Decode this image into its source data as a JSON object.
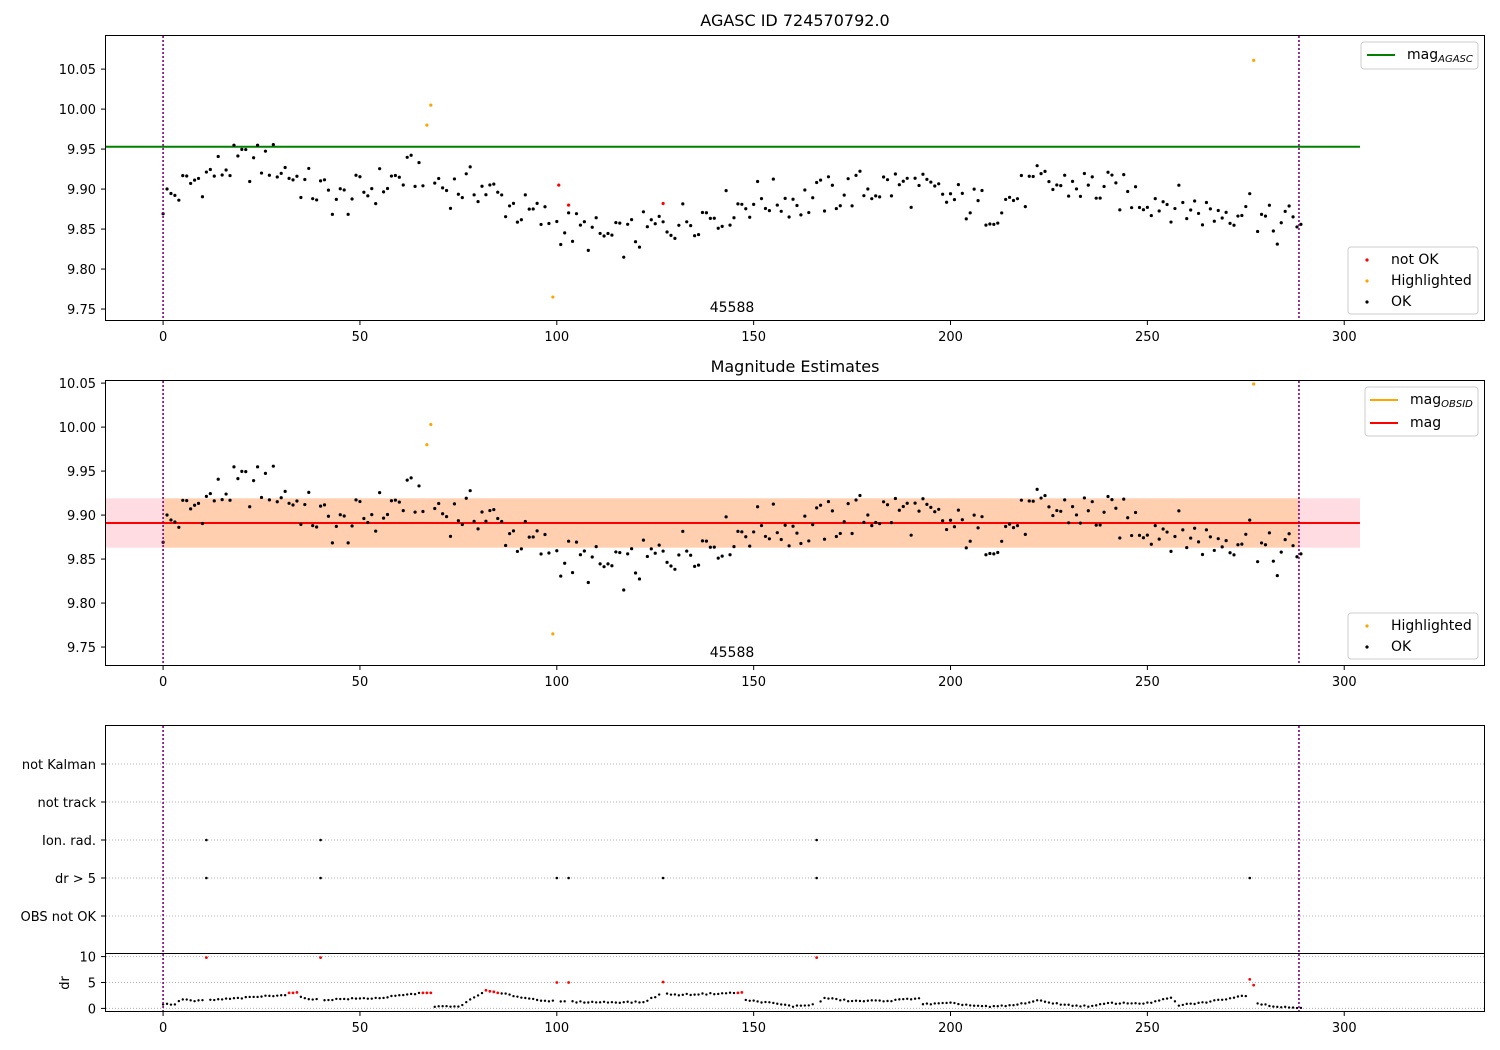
{
  "chart_data": [
    {
      "type": "scatter",
      "title": "AGASC ID 724570792.0",
      "xlabel": "",
      "ylabel": "",
      "xlim": [
        -14.5,
        335.5
      ],
      "ylim": [
        9.7363,
        10.0914
      ],
      "xticks": [
        0,
        50,
        100,
        150,
        200,
        250,
        300
      ],
      "yticks": [
        9.75,
        9.8,
        9.85,
        9.9,
        9.95,
        10.0,
        10.05
      ],
      "ytick_labels": [
        "9.75",
        "9.80",
        "9.85",
        "9.90",
        "9.95",
        "10.00",
        "10.05"
      ],
      "obsid_label": "45588",
      "obsid_label_x": 144.5,
      "vlines": [
        0,
        288.5
      ],
      "hline": {
        "name": "mag$_{AGASC}$",
        "value": 9.953,
        "x_range": [
          0,
          304
        ],
        "color": "#008000"
      },
      "legend_upper": [
        {
          "label": "mag",
          "sub": "AGASC",
          "color": "#008000"
        }
      ],
      "legend_lower": [
        {
          "label": "not OK",
          "color": "#ff0000"
        },
        {
          "label": "Highlighted",
          "color": "#ffa500"
        },
        {
          "label": "OK",
          "color": "#000000"
        }
      ],
      "series": [
        {
          "name": "not OK",
          "color": "#ff0000",
          "x": [
            100.5,
            103,
            127
          ],
          "y": [
            9.905,
            9.88,
            9.882
          ]
        },
        {
          "name": "Highlighted",
          "color": "#ffa500",
          "x": [
            67,
            68,
            99,
            277
          ],
          "y": [
            9.98,
            10.005,
            9.765,
            10.061
          ]
        }
      ]
    },
    {
      "type": "scatter",
      "title": "Magnitude Estimates",
      "xlabel": "",
      "ylabel": "",
      "xlim": [
        -14.5,
        335.5
      ],
      "ylim": [
        9.7296,
        10.0524
      ],
      "xticks": [
        0,
        50,
        100,
        150,
        200,
        250,
        300
      ],
      "yticks": [
        9.75,
        9.8,
        9.85,
        9.9,
        9.95,
        10.0,
        10.05
      ],
      "ytick_labels": [
        "9.75",
        "9.80",
        "9.85",
        "9.90",
        "9.95",
        "10.00",
        "10.05"
      ],
      "obsid_label": "45588",
      "obsid_label_x": 144.5,
      "vlines": [
        0,
        288.5
      ],
      "mag": 9.891,
      "band_mag": [
        9.863,
        9.919
      ],
      "band_obsid": [
        9.863,
        9.919
      ],
      "legend_upper": [
        {
          "label": "mag",
          "sub": "OBSID",
          "color": "#ffa500"
        },
        {
          "label": "mag",
          "sub": "",
          "color": "#ff0000"
        }
      ],
      "legend_lower": [
        {
          "label": "Highlighted",
          "color": "#ffa500"
        },
        {
          "label": "OK",
          "color": "#000000"
        }
      ],
      "series": [
        {
          "name": "Highlighted",
          "color": "#ffa500",
          "x": [
            67,
            68,
            99,
            277
          ],
          "y": [
            9.98,
            10.003,
            9.765,
            10.049
          ]
        }
      ]
    },
    {
      "type": "scatter",
      "title": "",
      "xlim": [
        -14.5,
        335.5
      ],
      "flags": [
        "not Kalman",
        "not track",
        "Ion. rad.",
        "dr > 5",
        "OBS not OK"
      ],
      "flag_points": {
        "Ion. rad.": [
          11,
          40,
          166
        ],
        "dr > 5": [
          11,
          40,
          100,
          103,
          127,
          166,
          276
        ]
      },
      "vlines": [
        0,
        288.5
      ]
    },
    {
      "type": "scatter",
      "title": "",
      "ylabel": "dr",
      "xlim": [
        -14.5,
        335.5
      ],
      "ylim": [
        -0.5,
        10.5
      ],
      "yticks": [
        0,
        5,
        10
      ],
      "xticks": [
        0,
        50,
        100,
        150,
        200,
        250,
        300
      ],
      "vlines": [
        0,
        288.5
      ],
      "red_points": {
        "x": [
          11,
          32,
          33,
          34,
          40,
          66,
          67,
          68,
          82,
          83,
          84,
          85,
          100,
          103,
          127,
          146,
          147,
          166,
          276,
          277
        ],
        "y": [
          9.8,
          3.0,
          3.0,
          3.1,
          9.8,
          3.0,
          3.0,
          3.0,
          3.5,
          3.3,
          3.2,
          3.0,
          5.0,
          5.0,
          5.1,
          3.0,
          3.1,
          9.8,
          5.6,
          4.5
        ]
      }
    }
  ]
}
